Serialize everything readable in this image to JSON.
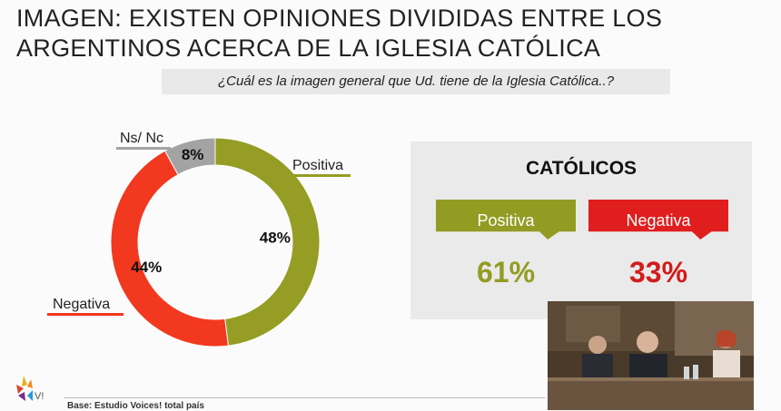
{
  "title": "IMAGEN: EXISTEN OPINIONES DIVIDIDAS ENTRE LOS ARGENTINOS ACERCA DE LA IGLESIA CATÓLICA",
  "question": "¿Cuál es la imagen general que Ud. tiene de la Iglesia Católica..?",
  "chart_data": [
    {
      "type": "pie",
      "title": "",
      "categories": [
        "Positiva",
        "Negativa",
        "Ns/ Nc"
      ],
      "values": [
        48,
        44,
        8
      ],
      "value_labels": [
        "48%",
        "44%",
        "8%"
      ],
      "colors": [
        "#959d24",
        "#f2381f",
        "#a3a3a3"
      ],
      "donut": true
    },
    {
      "type": "table",
      "title": "CATÓLICOS",
      "categories": [
        "Positiva",
        "Negativa"
      ],
      "values": [
        61,
        33
      ],
      "value_labels": [
        "61%",
        "33%"
      ],
      "colors": [
        "#929c22",
        "#e01e1e"
      ]
    }
  ],
  "catolicos": {
    "title": "CATÓLICOS",
    "positiva_label": "Positiva",
    "negativa_label": "Negativa",
    "positiva_value": "61%",
    "negativa_value": "33%"
  },
  "logo_text": "V!",
  "footer": "Base: Estudio Voices! total país"
}
